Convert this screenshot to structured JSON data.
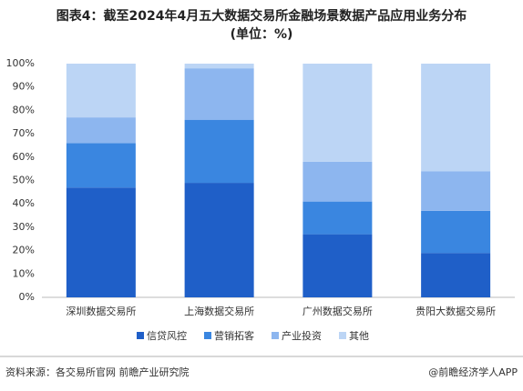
{
  "chart_data": {
    "type": "stacked_bar",
    "title": "图表4：截至2024年4月五大数据交易所金融场景数据产品应用业务分布",
    "subtitle": "(单位：%)",
    "categories": [
      "深圳数据交易所",
      "上海数据交易所",
      "广州数据交易所",
      "贵阳大数据交易所"
    ],
    "series": [
      {
        "name": "信贷风控",
        "color": "#1f5fc8",
        "values": [
          47,
          49,
          27,
          19
        ]
      },
      {
        "name": "营销拓客",
        "color": "#3a86e0",
        "values": [
          19,
          27,
          14,
          18
        ]
      },
      {
        "name": "产业投资",
        "color": "#8db6ef",
        "values": [
          11,
          22,
          17,
          17
        ]
      },
      {
        "name": "其他",
        "color": "#bcd5f5",
        "values": [
          23,
          2,
          42,
          46
        ]
      }
    ],
    "ylim": [
      0,
      100
    ],
    "yticks": [
      {
        "value": 0,
        "label": "0%"
      },
      {
        "value": 10,
        "label": "10%"
      },
      {
        "value": 20,
        "label": "20%"
      },
      {
        "value": 30,
        "label": "30%"
      },
      {
        "value": 40,
        "label": "40%"
      },
      {
        "value": 50,
        "label": "50%"
      },
      {
        "value": 60,
        "label": "60%"
      },
      {
        "value": 70,
        "label": "70%"
      },
      {
        "value": 80,
        "label": "80%"
      },
      {
        "value": 90,
        "label": "90%"
      },
      {
        "value": 100,
        "label": "100%"
      }
    ],
    "source": "资料来源：各交易所官网 前瞻产业研究院",
    "credit": "@前瞻经济学人APP"
  }
}
